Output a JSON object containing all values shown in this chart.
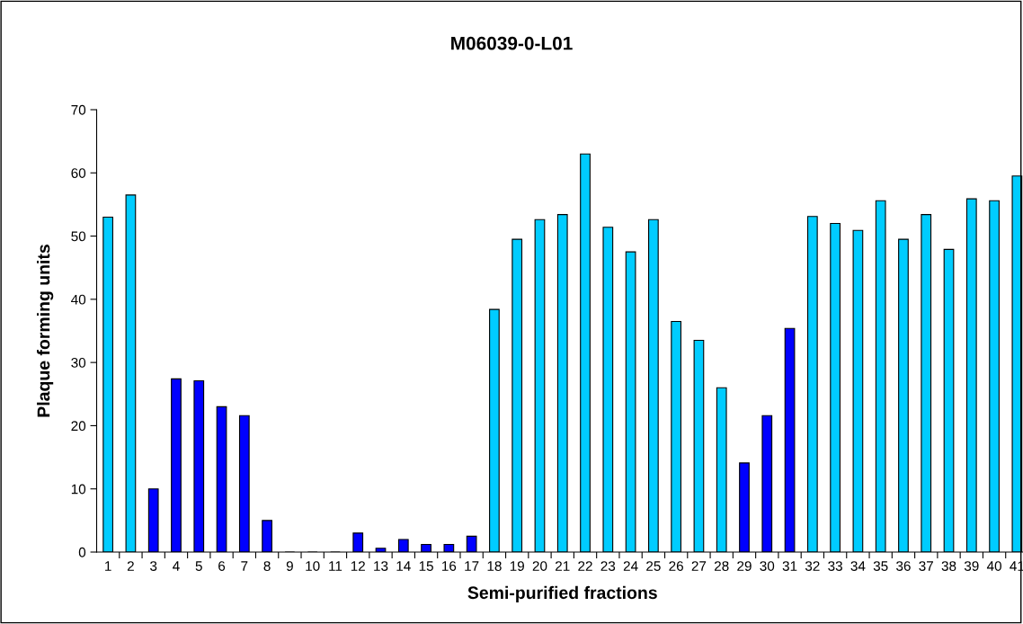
{
  "chart_data": {
    "type": "bar",
    "title": "M06039-0-L01",
    "xlabel": "Semi-purified fractions",
    "ylabel": "Plaque forming units",
    "categories": [
      "1",
      "2",
      "3",
      "4",
      "5",
      "6",
      "7",
      "8",
      "9",
      "10",
      "11",
      "12",
      "13",
      "14",
      "15",
      "16",
      "17",
      "18",
      "19",
      "20",
      "21",
      "22",
      "23",
      "24",
      "25",
      "26",
      "27",
      "28",
      "29",
      "30",
      "31",
      "32",
      "33",
      "34",
      "35",
      "36",
      "37",
      "38",
      "39",
      "40",
      "41"
    ],
    "values": [
      53.0,
      56.5,
      10,
      27.4,
      27.1,
      23.0,
      21.6,
      5.0,
      0,
      0,
      0,
      3.0,
      0.6,
      2.0,
      1.2,
      1.2,
      2.5,
      38.4,
      49.5,
      52.6,
      53.4,
      63.0,
      51.4,
      47.5,
      52.6,
      36.5,
      33.5,
      26.0,
      14.1,
      21.6,
      35.4,
      53.1,
      52.0,
      50.9,
      55.6,
      49.5,
      53.4,
      47.9,
      55.9,
      55.6,
      59.5
    ],
    "colors": [
      "#00ccff",
      "#00ccff",
      "#0000ff",
      "#0000ff",
      "#0000ff",
      "#0000ff",
      "#0000ff",
      "#0000ff",
      "#0000ff",
      "#0000ff",
      "#0000ff",
      "#0000ff",
      "#0000ff",
      "#0000ff",
      "#0000ff",
      "#0000ff",
      "#0000ff",
      "#00ccff",
      "#00ccff",
      "#00ccff",
      "#00ccff",
      "#00ccff",
      "#00ccff",
      "#00ccff",
      "#00ccff",
      "#00ccff",
      "#00ccff",
      "#00ccff",
      "#0000ff",
      "#0000ff",
      "#0000ff",
      "#00ccff",
      "#00ccff",
      "#00ccff",
      "#00ccff",
      "#00ccff",
      "#00ccff",
      "#00ccff",
      "#00ccff",
      "#00ccff",
      "#00ccff"
    ],
    "ylim": [
      0,
      70
    ],
    "yticks": [
      0,
      10,
      20,
      30,
      40,
      50,
      60,
      70
    ],
    "grid": false
  }
}
